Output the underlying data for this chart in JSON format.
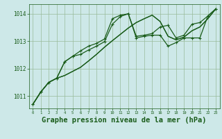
{
  "background_color": "#cde8e8",
  "plot_bg_color": "#cde8e8",
  "grid_color": "#99bb99",
  "line_color": "#1a5c1a",
  "marker_color": "#1a5c1a",
  "xlabel": "Graphe pression niveau de la mer (hPa)",
  "xlabel_fontsize": 7.5,
  "xlim": [
    -0.5,
    23.5
  ],
  "ylim": [
    1010.55,
    1014.35
  ],
  "yticks": [
    1011,
    1012,
    1013,
    1014
  ],
  "xticks": [
    0,
    1,
    2,
    3,
    4,
    5,
    6,
    7,
    8,
    9,
    10,
    11,
    12,
    13,
    14,
    15,
    16,
    17,
    18,
    19,
    20,
    21,
    22,
    23
  ],
  "series": [
    {
      "x": [
        0,
        1,
        2,
        3,
        4,
        5,
        6,
        7,
        8,
        9,
        10,
        11,
        12,
        13,
        14,
        15,
        16,
        17,
        18,
        19,
        20,
        21,
        22,
        23
      ],
      "y": [
        1010.7,
        1011.15,
        1011.5,
        1011.65,
        1011.75,
        1011.9,
        1012.05,
        1012.28,
        1012.52,
        1012.78,
        1013.02,
        1013.25,
        1013.48,
        1013.68,
        1013.82,
        1013.95,
        1013.72,
        1013.18,
        1013.05,
        1013.15,
        1013.38,
        1013.52,
        1013.82,
        1014.18
      ],
      "marker": false,
      "lw": 0.9
    },
    {
      "x": [
        0,
        1,
        2,
        3,
        4,
        5,
        6,
        7,
        8,
        9,
        10,
        11,
        12,
        13,
        14,
        15,
        16,
        17,
        18,
        19,
        20,
        21,
        22,
        23
      ],
      "y": [
        1010.7,
        1011.15,
        1011.5,
        1011.65,
        1012.25,
        1012.45,
        1012.65,
        1012.82,
        1012.92,
        1013.08,
        1013.82,
        1013.95,
        1014.0,
        1013.12,
        1013.18,
        1013.22,
        1013.22,
        1012.82,
        1012.95,
        1013.12,
        1013.12,
        1013.12,
        1013.92,
        1014.18
      ],
      "marker": true,
      "lw": 0.9
    },
    {
      "x": [
        0,
        1,
        2,
        3,
        4,
        5,
        6,
        7,
        8,
        9,
        10,
        11,
        12,
        13,
        14,
        15,
        16,
        17,
        18,
        19,
        20,
        21,
        22,
        23
      ],
      "y": [
        1010.7,
        1011.15,
        1011.5,
        1011.65,
        1012.25,
        1012.45,
        1012.52,
        1012.68,
        1012.82,
        1012.98,
        1013.62,
        1013.9,
        1014.0,
        1013.18,
        1013.22,
        1013.28,
        1013.52,
        1013.58,
        1013.12,
        1013.22,
        1013.62,
        1013.68,
        1013.92,
        1014.18
      ],
      "marker": true,
      "lw": 0.9
    },
    {
      "x": [
        0,
        1,
        2,
        3,
        4,
        5,
        6,
        7,
        8,
        9,
        10,
        11,
        12,
        13,
        14,
        15,
        16,
        17,
        18,
        19,
        20,
        21,
        22,
        23
      ],
      "y": [
        1010.7,
        1011.15,
        1011.5,
        1011.65,
        1011.75,
        1011.9,
        1012.05,
        1012.28,
        1012.52,
        1012.78,
        1013.02,
        1013.25,
        1013.48,
        1013.68,
        1013.82,
        1013.95,
        1013.72,
        1013.18,
        1013.05,
        1013.15,
        1013.38,
        1013.52,
        1013.82,
        1014.18
      ],
      "marker": false,
      "lw": 0.9
    }
  ]
}
